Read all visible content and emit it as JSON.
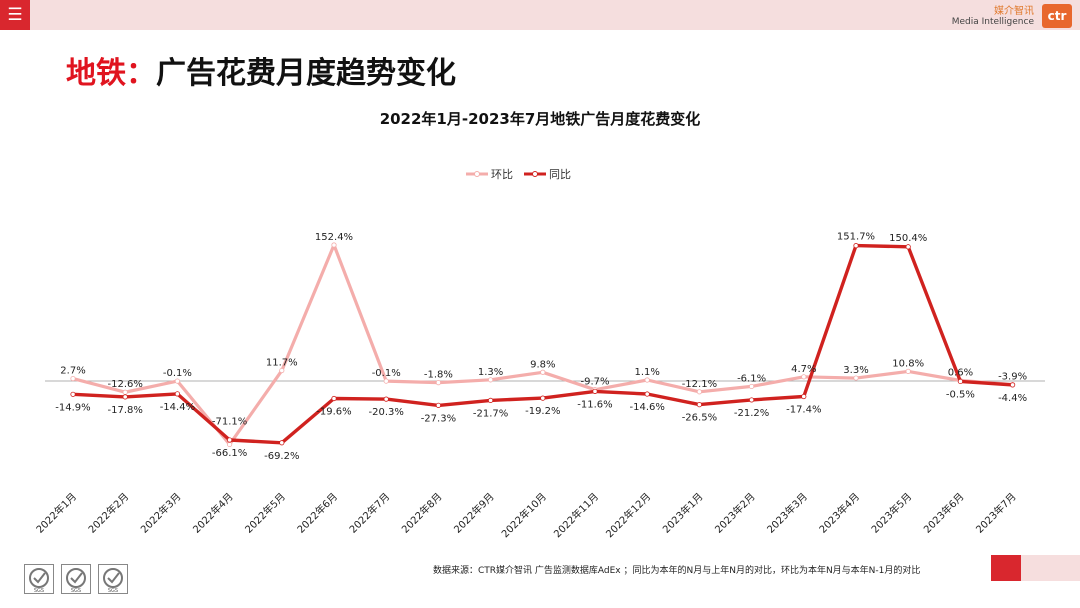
{
  "header": {
    "menu_icon": "hamburger-menu-icon",
    "brand_cn": "媒介智讯",
    "brand_en": "Media Intelligence",
    "brand_logo_text": "ctr"
  },
  "page": {
    "title_accent": "地铁：",
    "title_main": "广告花费月度趋势变化"
  },
  "chart_data": {
    "type": "line",
    "title": "2022年1月-2023年7月地铁广告月度花费变化",
    "categories": [
      "2022年1月",
      "2022年2月",
      "2022年3月",
      "2022年4月",
      "2022年5月",
      "2022年6月",
      "2022年7月",
      "2022年8月",
      "2022年9月",
      "2022年10月",
      "2022年11月",
      "2022年12月",
      "2023年1月",
      "2023年2月",
      "2023年3月",
      "2023年4月",
      "2023年5月",
      "2023年6月",
      "2023年7月"
    ],
    "series": [
      {
        "name": "环比",
        "color": "#f4adab",
        "values": [
          2.7,
          -12.6,
          -0.1,
          -71.1,
          11.7,
          152.4,
          -0.1,
          -1.8,
          1.3,
          9.8,
          -9.7,
          1.1,
          -12.1,
          -6.1,
          4.7,
          3.3,
          10.8,
          0.6,
          -3.9
        ],
        "labels": [
          "2.7%",
          "-12.6%",
          "-0.1%",
          "-71.1%",
          "11.7%",
          "152.4%",
          "-0.1%",
          "-1.8%",
          "1.3%",
          "9.8%",
          "-9.7%",
          "1.1%",
          "-12.1%",
          "-6.1%",
          "4.7%",
          "3.3%",
          "10.8%",
          "0.6%",
          "-3.9%"
        ]
      },
      {
        "name": "同比",
        "color": "#d0221f",
        "values": [
          -14.9,
          -17.8,
          -14.4,
          -66.1,
          -69.2,
          -19.6,
          -20.3,
          -27.3,
          -21.7,
          -19.2,
          -11.6,
          -14.6,
          -26.5,
          -21.2,
          -17.4,
          151.7,
          150.4,
          -0.5,
          -4.4
        ],
        "labels": [
          "-14.9%",
          "-17.8%",
          "-14.4%",
          "-66.1%",
          "-69.2%",
          "-19.6%",
          "-20.3%",
          "-27.3%",
          "-21.7%",
          "-19.2%",
          "-11.6%",
          "-14.6%",
          "-26.5%",
          "-21.2%",
          "-17.4%",
          "151.7%",
          "150.4%",
          "-0.5%",
          "-4.4%"
        ]
      }
    ],
    "zero_line": true,
    "legend_position": "top-center",
    "grid": false
  },
  "footer": {
    "note": "数据来源：CTR媒介智讯 广告监测数据库AdEx ；同比为本年的N月与上年N月的对比，环比为本年N月与本年N-1月的对比",
    "badges": [
      "SGS",
      "SGS",
      "SGS"
    ]
  }
}
